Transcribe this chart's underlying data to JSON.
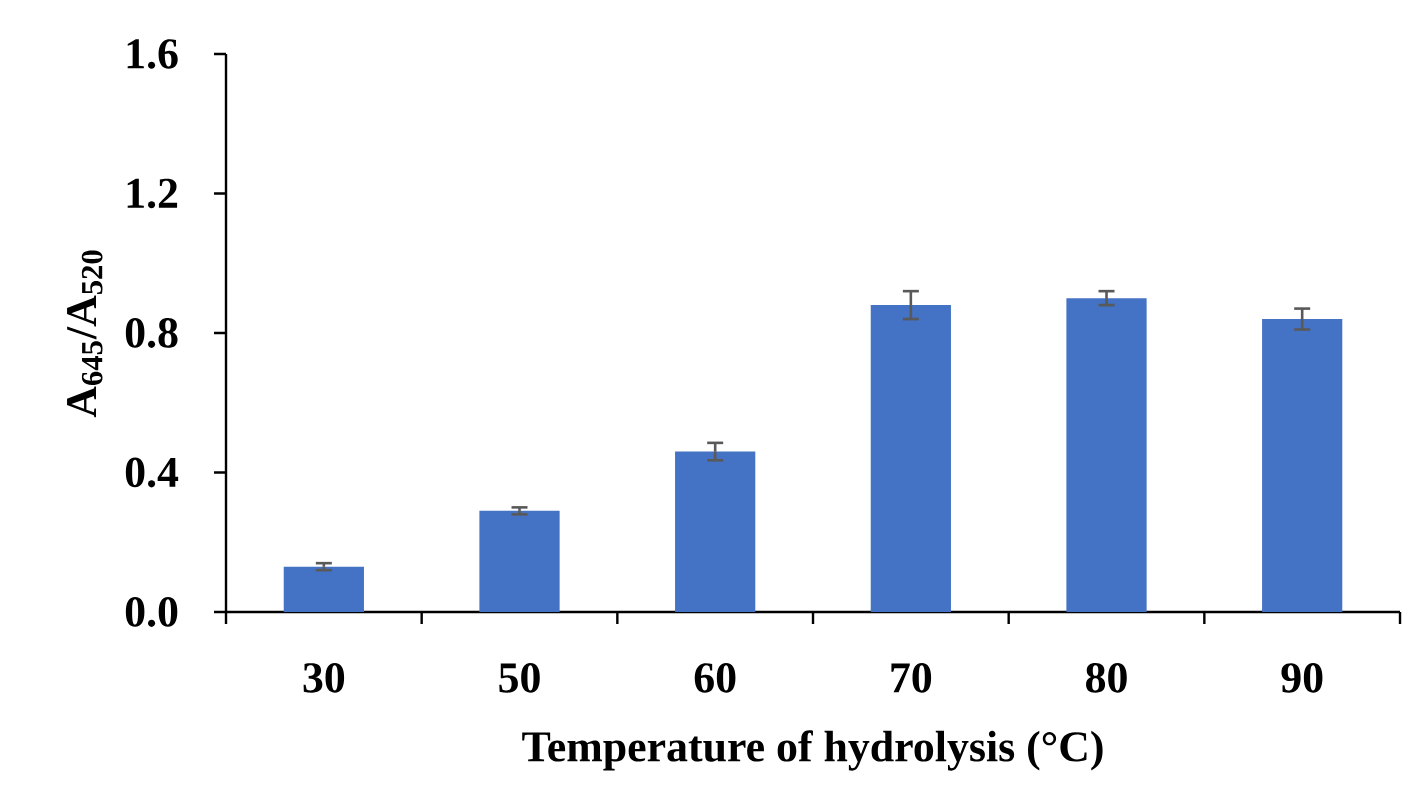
{
  "chart_data": {
    "type": "bar",
    "xlabel": "Temperature of hydrolysis (°C)",
    "ylabel": "A$_{645}$/A$_{520}$",
    "categories": [
      "30",
      "50",
      "60",
      "70",
      "80",
      "90"
    ],
    "values": [
      0.13,
      0.29,
      0.46,
      0.88,
      0.9,
      0.84
    ],
    "errors": [
      0.01,
      0.01,
      0.025,
      0.04,
      0.02,
      0.03
    ],
    "color": "#4472c4",
    "ylim": [
      0,
      1.6
    ],
    "yticks": [
      {
        "value": 0,
        "label": "0.0"
      },
      {
        "value": 0.4,
        "label": "0.4"
      },
      {
        "value": 0.8,
        "label": "0.8"
      },
      {
        "value": 1.2,
        "label": "1.2"
      },
      {
        "value": 1.6,
        "label": "1.6"
      }
    ],
    "grid": false
  }
}
